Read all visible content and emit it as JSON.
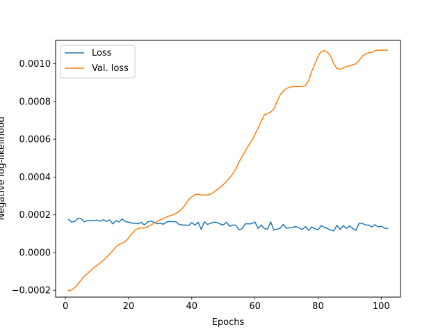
{
  "chart_data": {
    "type": "line",
    "xlabel": "Epochs",
    "ylabel": "Negative log-likelihood",
    "xlim": [
      -3.1,
      106.1
    ],
    "ylim": [
      -0.000236,
      0.001124
    ],
    "xticks": [
      0,
      20,
      40,
      60,
      80,
      100
    ],
    "yticks": [
      -0.0002,
      0.0,
      0.0002,
      0.0004,
      0.0006,
      0.0008,
      0.001
    ],
    "ytick_labels": [
      "−0.0002",
      "0.0000",
      "0.0002",
      "0.0004",
      "0.0006",
      "0.0008",
      "0.0010"
    ],
    "xtick_labels": [
      "0",
      "20",
      "40",
      "60",
      "80",
      "100"
    ],
    "legend_position": "top-left",
    "series": [
      {
        "name": "Loss",
        "color": "#1f77b4",
        "x": [
          1,
          2,
          3,
          4,
          5,
          6,
          7,
          8,
          9,
          10,
          11,
          12,
          13,
          14,
          15,
          16,
          17,
          18,
          19,
          20,
          21,
          22,
          23,
          24,
          25,
          26,
          27,
          28,
          29,
          30,
          31,
          32,
          33,
          34,
          35,
          36,
          37,
          38,
          39,
          40,
          41,
          42,
          43,
          44,
          45,
          46,
          47,
          48,
          49,
          50,
          51,
          52,
          53,
          54,
          55,
          56,
          57,
          58,
          59,
          60,
          61,
          62,
          63,
          64,
          65,
          66,
          67,
          68,
          69,
          70,
          71,
          72,
          73,
          74,
          75,
          76,
          77,
          78,
          79,
          80,
          81,
          82,
          83,
          84,
          85,
          86,
          87,
          88,
          89,
          90,
          91,
          92,
          93,
          94,
          95,
          96,
          97,
          98,
          99,
          100,
          101,
          102
        ],
        "values": [
          0.000175,
          0.000162,
          0.000165,
          0.000181,
          0.000179,
          0.000162,
          0.000171,
          0.000169,
          0.00017,
          0.000172,
          0.000166,
          0.000174,
          0.000165,
          0.000173,
          0.000152,
          0.000169,
          0.000162,
          0.000178,
          0.000164,
          0.000161,
          0.000156,
          0.000155,
          0.000153,
          0.00016,
          0.000146,
          0.000162,
          0.000167,
          0.000161,
          0.000153,
          0.000155,
          0.00015,
          0.000162,
          0.000165,
          0.000164,
          0.000163,
          0.000149,
          0.000146,
          0.000146,
          0.000143,
          0.000159,
          0.000145,
          0.000161,
          0.000123,
          0.000163,
          0.000149,
          0.000156,
          0.000161,
          0.000159,
          0.000151,
          0.000146,
          0.000161,
          0.000139,
          0.000146,
          0.000145,
          0.00012,
          0.000128,
          0.000153,
          0.000152,
          0.000153,
          0.000162,
          0.000128,
          0.000146,
          0.000127,
          0.000124,
          0.000163,
          0.000119,
          0.000124,
          0.000129,
          0.000149,
          0.000129,
          0.000131,
          0.000134,
          0.000138,
          0.000131,
          0.000122,
          0.000138,
          0.000118,
          0.000136,
          0.000126,
          0.000121,
          0.000143,
          0.000133,
          0.000127,
          0.000119,
          0.000115,
          0.000145,
          0.000122,
          0.000143,
          0.000127,
          0.000141,
          0.000127,
          0.000118,
          0.000155,
          0.000155,
          0.000146,
          0.000146,
          0.000136,
          0.000148,
          0.000136,
          0.000139,
          0.00013,
          0.000128
        ]
      },
      {
        "name": "Val. loss",
        "color": "#ff7f0e",
        "x": [
          1,
          2,
          3,
          4,
          5,
          6,
          7,
          8,
          9,
          10,
          11,
          12,
          13,
          14,
          15,
          16,
          17,
          18,
          19,
          20,
          21,
          22,
          23,
          24,
          25,
          26,
          27,
          28,
          29,
          30,
          31,
          32,
          33,
          34,
          35,
          36,
          37,
          38,
          39,
          40,
          41,
          42,
          43,
          44,
          45,
          46,
          47,
          48,
          49,
          50,
          51,
          52,
          53,
          54,
          55,
          56,
          57,
          58,
          59,
          60,
          61,
          62,
          63,
          64,
          65,
          66,
          67,
          68,
          69,
          70,
          71,
          72,
          73,
          74,
          75,
          76,
          77,
          78,
          79,
          80,
          81,
          82,
          83,
          84,
          85,
          86,
          87,
          88,
          89,
          90,
          91,
          92,
          93,
          94,
          95,
          96,
          97,
          98,
          99,
          100,
          101,
          102
        ],
        "values": [
          -0.000202,
          -0.000198,
          -0.000185,
          -0.000165,
          -0.000145,
          -0.000125,
          -0.00011,
          -9.5e-05,
          -8e-05,
          -6.8e-05,
          -5.5e-05,
          -4.2e-05,
          -2.5e-05,
          -8e-06,
          1e-05,
          3e-05,
          4.3e-05,
          5e-05,
          6e-05,
          7.7e-05,
          0.0001,
          0.000117,
          0.000127,
          0.00013,
          0.00013,
          0.000138,
          0.000145,
          0.000155,
          0.000165,
          0.000173,
          0.00018,
          0.000188,
          0.000195,
          0.0002,
          0.000208,
          0.000218,
          0.000233,
          0.000255,
          0.00028,
          0.000295,
          0.000306,
          0.00031,
          0.000305,
          0.000305,
          0.000305,
          0.00031,
          0.00032,
          0.000333,
          0.000345,
          0.00036,
          0.000377,
          0.000396,
          0.000418,
          0.000444,
          0.00048,
          0.00051,
          0.00054,
          0.000568,
          0.000592,
          0.000625,
          0.00066,
          0.000695,
          0.00073,
          0.000735,
          0.000745,
          0.00076,
          0.0008,
          0.000835,
          0.000855,
          0.00087,
          0.000875,
          0.00088,
          0.00088,
          0.00088,
          0.00088,
          0.000885,
          0.00091,
          0.00096,
          0.001,
          0.00104,
          0.001065,
          0.00107,
          0.00106,
          0.00104,
          0.001,
          0.000975,
          0.00097,
          0.000978,
          0.000985,
          0.00099,
          0.000995,
          0.001,
          0.001018,
          0.00104,
          0.001052,
          0.001058,
          0.00106,
          0.00107,
          0.001072,
          0.001072,
          0.001072,
          0.001072
        ]
      }
    ]
  }
}
